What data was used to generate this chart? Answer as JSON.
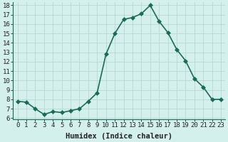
{
  "x": [
    0,
    1,
    2,
    3,
    4,
    5,
    6,
    7,
    8,
    9,
    10,
    11,
    12,
    13,
    14,
    15,
    16,
    17,
    18,
    19,
    20,
    21,
    22,
    23
  ],
  "y": [
    7.8,
    7.7,
    7.0,
    6.4,
    6.7,
    6.6,
    6.8,
    7.0,
    7.8,
    8.7,
    12.8,
    15.0,
    16.5,
    16.7,
    17.1,
    18.0,
    16.3,
    15.1,
    13.3,
    12.1,
    10.2,
    9.3,
    8.0,
    8.0
  ],
  "line_color": "#1a6b5a",
  "marker_color": "#1a6b5a",
  "bg_color": "#d4f0ec",
  "grid_color": "#b8d8d2",
  "spine_color": "#1a6b5a",
  "xlabel": "Humidex (Indice chaleur)",
  "ylim": [
    6,
    18
  ],
  "xlim": [
    -0.5,
    23.5
  ],
  "yticks": [
    6,
    7,
    8,
    9,
    10,
    11,
    12,
    13,
    14,
    15,
    16,
    17,
    18
  ],
  "xticks": [
    0,
    1,
    2,
    3,
    4,
    5,
    6,
    7,
    8,
    9,
    10,
    11,
    12,
    13,
    14,
    15,
    16,
    17,
    18,
    19,
    20,
    21,
    22,
    23
  ],
  "xlabel_fontsize": 7.5,
  "tick_fontsize": 6.5,
  "line_width": 1.2,
  "marker_size": 3.0
}
